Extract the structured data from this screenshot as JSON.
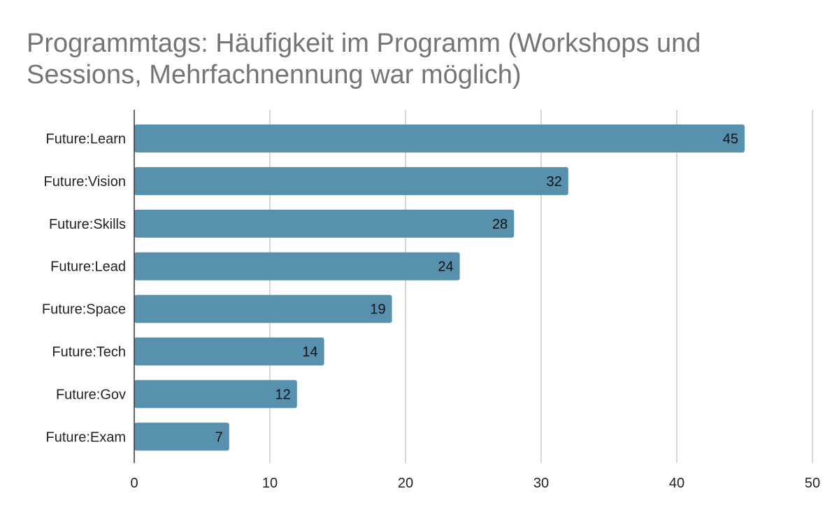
{
  "chart_data": {
    "type": "bar",
    "orientation": "horizontal",
    "title": "Programmtags: Häufigkeit im Programm (Workshops und Sessions, Mehrfachnennung war möglich)",
    "categories": [
      "Future:Learn",
      "Future:Vision",
      "Future:Skills",
      "Future:Lead",
      "Future:Space",
      "Future:Tech",
      "Future:Gov",
      "Future:Exam"
    ],
    "values": [
      45,
      32,
      28,
      24,
      19,
      14,
      12,
      7
    ],
    "xlabel": "",
    "ylabel": "",
    "xlim": [
      0,
      50
    ],
    "xticks": [
      0,
      10,
      20,
      30,
      40,
      50
    ],
    "grid": true,
    "data_labels": true,
    "bar_color": "#5891ae"
  }
}
